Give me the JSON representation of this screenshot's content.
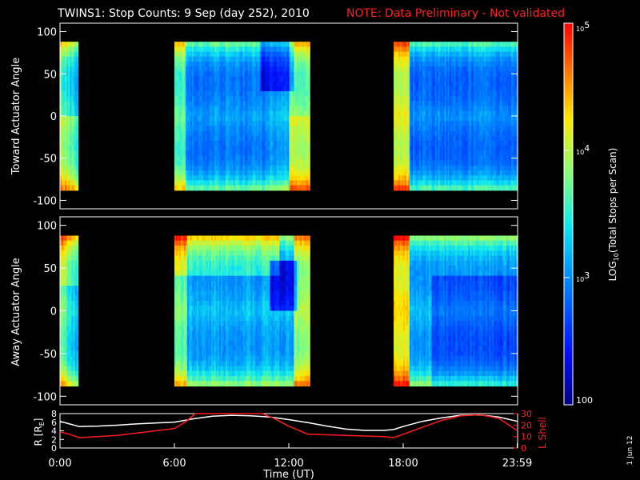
{
  "title": {
    "main": "TWINS1: Stop Counts:  9 Sep (day 252), 2010",
    "note": "NOTE: Data Preliminary - Not validated"
  },
  "colors": {
    "background": "#000000",
    "note_red": "#ff2020",
    "r_line": "#ffffff",
    "lshell_line": "#ff1a1a"
  },
  "footer_date": "1 Jun 12",
  "chart_data": [
    {
      "type": "heatmap",
      "name": "toward",
      "ylabel": "Toward Actuator Angle",
      "ylim": [
        -110,
        110
      ],
      "yticks": [
        100,
        50,
        0,
        -50,
        -100
      ],
      "data_yrange": [
        -88,
        88
      ],
      "xlim_hours": [
        0,
        24
      ],
      "data_intervals_hours": [
        [
          0,
          0.95
        ],
        [
          6,
          13.1
        ],
        [
          17.5,
          24
        ]
      ],
      "level_desc": "log10 counts 2.0-5.0; low counts (blue) at mid-angles, high counts (yellow/red) near +/-88 deg edges and around 13:00 and 17:30-18:00"
    },
    {
      "type": "heatmap",
      "name": "away",
      "ylabel": "Away Actuator Angle",
      "ylim": [
        -110,
        110
      ],
      "yticks": [
        100,
        50,
        0,
        -50,
        -100
      ],
      "data_yrange": [
        -88,
        88
      ],
      "xlim_hours": [
        0,
        24
      ],
      "data_intervals_hours": [
        [
          0,
          0.95
        ],
        [
          6,
          13.1
        ],
        [
          17.5,
          24
        ]
      ],
      "level_desc": "log10 counts 2.0-5.0; enhanced counts 6:00-12:00 at positive angles, dark blue patch near 12:30"
    },
    {
      "type": "line",
      "name": "orbit",
      "x_ticklabels": [
        "0:00",
        "6:00",
        "12:00",
        "18:00",
        "23:59"
      ],
      "x_tick_hours": [
        0,
        6,
        12,
        18,
        23.98
      ],
      "xlabel": "Time (UT)",
      "left_axis": {
        "label": "R [RE]",
        "label_main": "R [R",
        "label_sub": "E",
        "label_end": "]",
        "ylim": [
          0,
          8
        ],
        "yticks": [
          0,
          2,
          4,
          6,
          8
        ]
      },
      "right_axis": {
        "label": "L Shell",
        "ylim": [
          0,
          30
        ],
        "yticks": [
          0,
          10,
          20,
          30
        ]
      },
      "series": [
        {
          "name": "R",
          "axis": "left",
          "x": [
            0,
            0.5,
            1,
            2,
            3,
            4,
            5,
            6,
            7,
            8,
            9,
            10,
            11,
            12,
            13,
            14,
            15,
            16,
            17,
            17.5,
            18,
            19,
            20,
            21,
            22,
            23,
            24
          ],
          "y": [
            6.2,
            5.6,
            5.0,
            5.1,
            5.3,
            5.6,
            5.8,
            6.0,
            6.8,
            7.4,
            7.6,
            7.5,
            7.2,
            6.6,
            5.9,
            5.1,
            4.4,
            4.1,
            4.1,
            4.3,
            5.0,
            6.2,
            7.0,
            7.6,
            7.7,
            7.2,
            6.2
          ]
        },
        {
          "name": "L Shell",
          "axis": "right",
          "x": [
            0,
            0.5,
            1,
            2,
            3,
            4,
            5,
            6,
            6.6,
            7.1,
            10.6,
            11.2,
            12,
            13,
            14,
            15,
            16,
            17,
            17.5,
            18,
            19,
            20,
            21,
            22,
            23,
            24
          ],
          "y": [
            14,
            12,
            9,
            10,
            11,
            13,
            15,
            17,
            23,
            32,
            32,
            26,
            19,
            12,
            11.5,
            11,
            10.5,
            10,
            9,
            12,
            18,
            24,
            28,
            29,
            26,
            15
          ]
        }
      ]
    },
    {
      "type": "heatmap",
      "name": "colorbar",
      "title": "LOG10(Total Stops per Scan)",
      "title_main": "LOG",
      "title_sub": "10",
      "title_end": "(Total Stops per Scan)",
      "levels": [
        2,
        3,
        4,
        5
      ],
      "tick_labels": [
        {
          "value": 5,
          "base": "10",
          "exp": "5"
        },
        {
          "value": 4,
          "base": "10",
          "exp": "4"
        },
        {
          "value": 3,
          "base": "10",
          "exp": "3"
        },
        {
          "value": 2,
          "base": "100",
          "exp": ""
        }
      ]
    }
  ]
}
